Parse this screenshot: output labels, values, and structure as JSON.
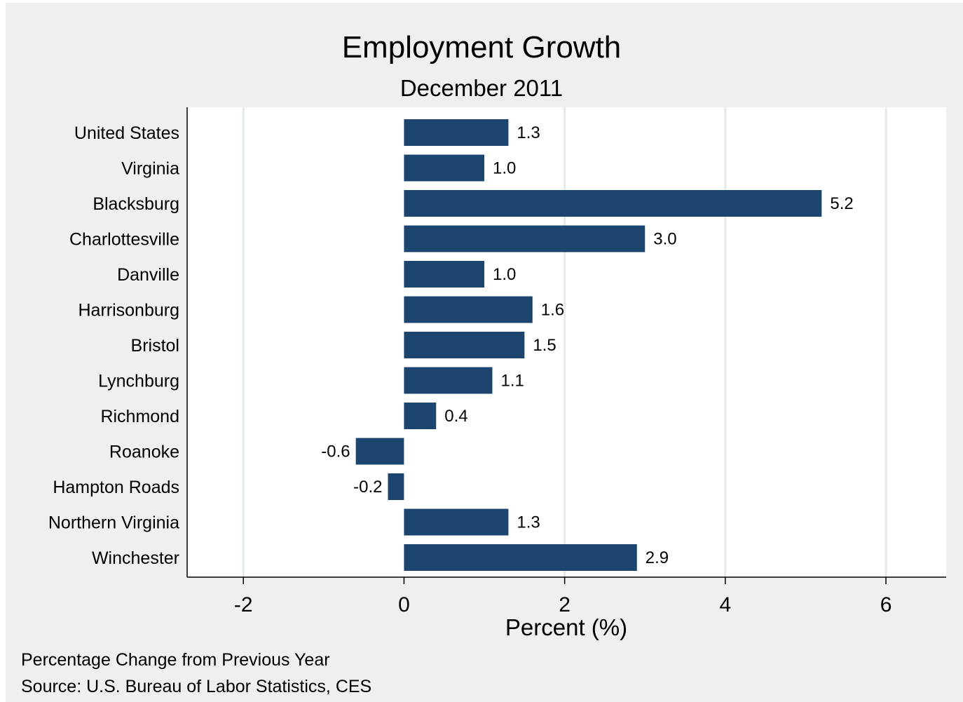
{
  "chart_data": {
    "type": "bar",
    "orientation": "horizontal",
    "title": "Employment Growth",
    "subtitle": "December 2011",
    "xlabel": "Percent (%)",
    "ylabel": "",
    "categories": [
      "United States",
      "Virginia",
      "Blacksburg",
      "Charlottesville",
      "Danville",
      "Harrisonburg",
      "Bristol",
      "Lynchburg",
      "Richmond",
      "Roanoke",
      "Hampton Roads",
      "Northern Virginia",
      "Winchester"
    ],
    "values": [
      1.3,
      1.0,
      5.2,
      3.0,
      1.0,
      1.6,
      1.5,
      1.1,
      0.4,
      -0.6,
      -0.2,
      1.3,
      2.9
    ],
    "value_labels": [
      "1.3",
      "1.0",
      "5.2",
      "3.0",
      "1.0",
      "1.6",
      "1.5",
      "1.1",
      "0.4",
      "-0.6",
      "-0.2",
      "1.3",
      "2.9"
    ],
    "xticks": [
      -2,
      0,
      2,
      4,
      6
    ],
    "xtick_labels": [
      "-2",
      "0",
      "2",
      "4",
      "6"
    ],
    "xlim": [
      -2.7,
      6.75
    ],
    "grid": "vertical",
    "legend": "none",
    "bar_color": "#1c4670",
    "grid_color": "#e3eaec",
    "background_color": "#efefef",
    "plot_background": "#ffffff"
  },
  "notes": {
    "line1": "Percentage Change from Previous Year",
    "line2": "Source: U.S. Bureau of Labor Statistics, CES"
  }
}
